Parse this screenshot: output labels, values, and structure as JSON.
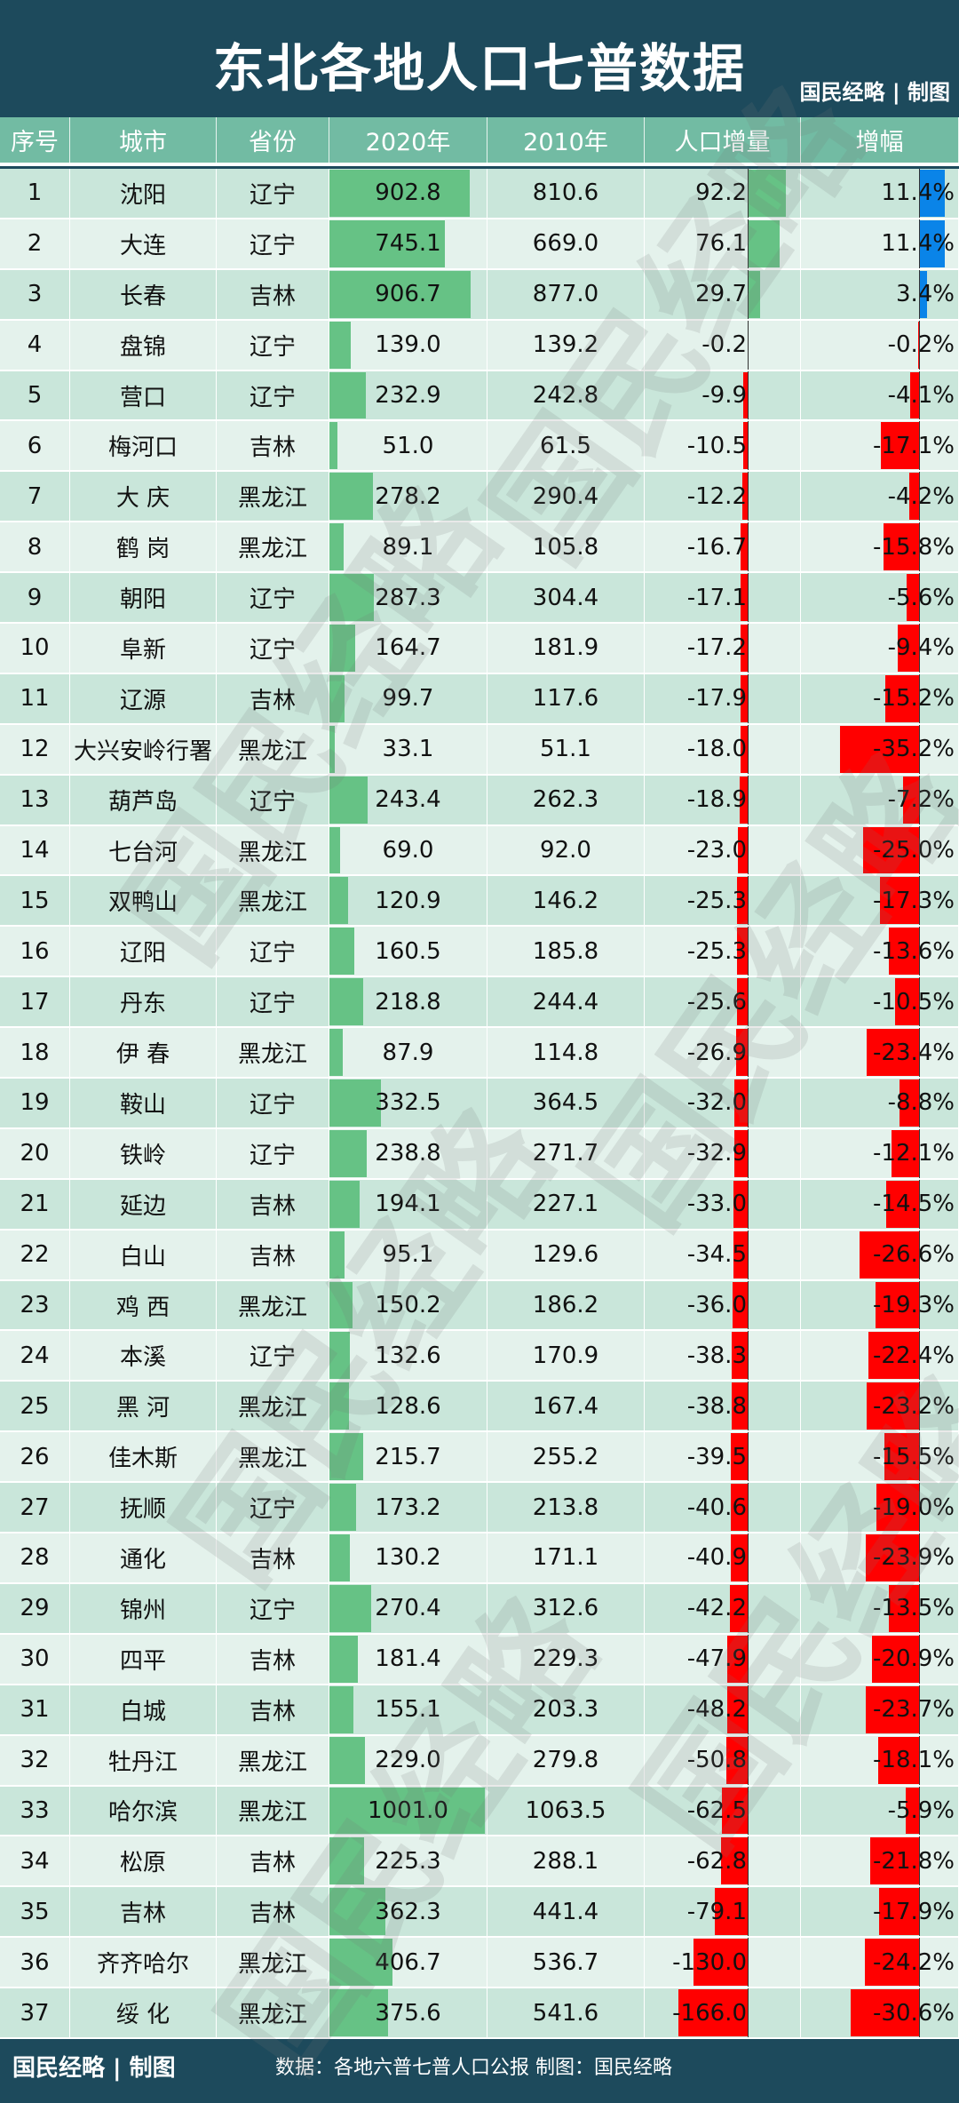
{
  "title": "东北各地人口七普数据",
  "brand": "国民经略 | 制图",
  "watermark": "国民经略",
  "columns": [
    "序号",
    "城市",
    "省份",
    "2020年",
    "2010年",
    "人口增量",
    "增幅"
  ],
  "colors": {
    "header_bg": "#1d4a5c",
    "column_header_bg": "#72bba3",
    "bar_2020": "#66c285",
    "positive_change": "#66c285",
    "negative_change": "#ff0000",
    "positive_rate": "#0a84e8",
    "row_odd": "#c9e6da",
    "row_even": "#e4f2ec"
  },
  "rows": [
    [
      "1",
      "沈阳",
      "辽宁",
      "902.8",
      "810.6",
      "92.2",
      "11.4%"
    ],
    [
      "2",
      "大连",
      "辽宁",
      "745.1",
      "669.0",
      "76.1",
      "11.4%"
    ],
    [
      "3",
      "长春",
      "吉林",
      "906.7",
      "877.0",
      "29.7",
      "3.4%"
    ],
    [
      "4",
      "盘锦",
      "辽宁",
      "139.0",
      "139.2",
      "-0.2",
      "-0.2%"
    ],
    [
      "5",
      "营口",
      "辽宁",
      "232.9",
      "242.8",
      "-9.9",
      "-4.1%"
    ],
    [
      "6",
      "梅河口",
      "吉林",
      "51.0",
      "61.5",
      "-10.5",
      "-17.1%"
    ],
    [
      "7",
      "大 庆",
      "黑龙江",
      "278.2",
      "290.4",
      "-12.2",
      "-4.2%"
    ],
    [
      "8",
      "鹤 岗",
      "黑龙江",
      "89.1",
      "105.8",
      "-16.7",
      "-15.8%"
    ],
    [
      "9",
      "朝阳",
      "辽宁",
      "287.3",
      "304.4",
      "-17.1",
      "-5.6%"
    ],
    [
      "10",
      "阜新",
      "辽宁",
      "164.7",
      "181.9",
      "-17.2",
      "-9.4%"
    ],
    [
      "11",
      "辽源",
      "吉林",
      "99.7",
      "117.6",
      "-17.9",
      "-15.2%"
    ],
    [
      "12",
      "大兴安岭行署",
      "黑龙江",
      "33.1",
      "51.1",
      "-18.0",
      "-35.2%"
    ],
    [
      "13",
      "葫芦岛",
      "辽宁",
      "243.4",
      "262.3",
      "-18.9",
      "-7.2%"
    ],
    [
      "14",
      "七台河",
      "黑龙江",
      "69.0",
      "92.0",
      "-23.0",
      "-25.0%"
    ],
    [
      "15",
      "双鸭山",
      "黑龙江",
      "120.9",
      "146.2",
      "-25.3",
      "-17.3%"
    ],
    [
      "16",
      "辽阳",
      "辽宁",
      "160.5",
      "185.8",
      "-25.3",
      "-13.6%"
    ],
    [
      "17",
      "丹东",
      "辽宁",
      "218.8",
      "244.4",
      "-25.6",
      "-10.5%"
    ],
    [
      "18",
      "伊 春",
      "黑龙江",
      "87.9",
      "114.8",
      "-26.9",
      "-23.4%"
    ],
    [
      "19",
      "鞍山",
      "辽宁",
      "332.5",
      "364.5",
      "-32.0",
      "-8.8%"
    ],
    [
      "20",
      "铁岭",
      "辽宁",
      "238.8",
      "271.7",
      "-32.9",
      "-12.1%"
    ],
    [
      "21",
      "延边",
      "吉林",
      "194.1",
      "227.1",
      "-33.0",
      "-14.5%"
    ],
    [
      "22",
      "白山",
      "吉林",
      "95.1",
      "129.6",
      "-34.5",
      "-26.6%"
    ],
    [
      "23",
      "鸡 西",
      "黑龙江",
      "150.2",
      "186.2",
      "-36.0",
      "-19.3%"
    ],
    [
      "24",
      "本溪",
      "辽宁",
      "132.6",
      "170.9",
      "-38.3",
      "-22.4%"
    ],
    [
      "25",
      "黑 河",
      "黑龙江",
      "128.6",
      "167.4",
      "-38.8",
      "-23.2%"
    ],
    [
      "26",
      "佳木斯",
      "黑龙江",
      "215.7",
      "255.2",
      "-39.5",
      "-15.5%"
    ],
    [
      "27",
      "抚顺",
      "辽宁",
      "173.2",
      "213.8",
      "-40.6",
      "-19.0%"
    ],
    [
      "28",
      "通化",
      "吉林",
      "130.2",
      "171.1",
      "-40.9",
      "-23.9%"
    ],
    [
      "29",
      "锦州",
      "辽宁",
      "270.4",
      "312.6",
      "-42.2",
      "-13.5%"
    ],
    [
      "30",
      "四平",
      "吉林",
      "181.4",
      "229.3",
      "-47.9",
      "-20.9%"
    ],
    [
      "31",
      "白城",
      "吉林",
      "155.1",
      "203.3",
      "-48.2",
      "-23.7%"
    ],
    [
      "32",
      "牡丹江",
      "黑龙江",
      "229.0",
      "279.8",
      "-50.8",
      "-18.1%"
    ],
    [
      "33",
      "哈尔滨",
      "黑龙江",
      "1001.0",
      "1063.5",
      "-62.5",
      "-5.9%"
    ],
    [
      "34",
      "松原",
      "吉林",
      "225.3",
      "288.1",
      "-62.8",
      "-21.8%"
    ],
    [
      "35",
      "吉林",
      "吉林",
      "362.3",
      "441.4",
      "-79.1",
      "-17.9%"
    ],
    [
      "36",
      "齐齐哈尔",
      "黑龙江",
      "406.7",
      "536.7",
      "-130.0",
      "-24.2%"
    ],
    [
      "37",
      "绥 化",
      "黑龙江",
      "375.6",
      "541.6",
      "-166.0",
      "-30.6%"
    ]
  ],
  "footer": {
    "brand": "国民经略 | 制图",
    "source": "数据：各地六普七普人口公报 制图：国民经略"
  }
}
